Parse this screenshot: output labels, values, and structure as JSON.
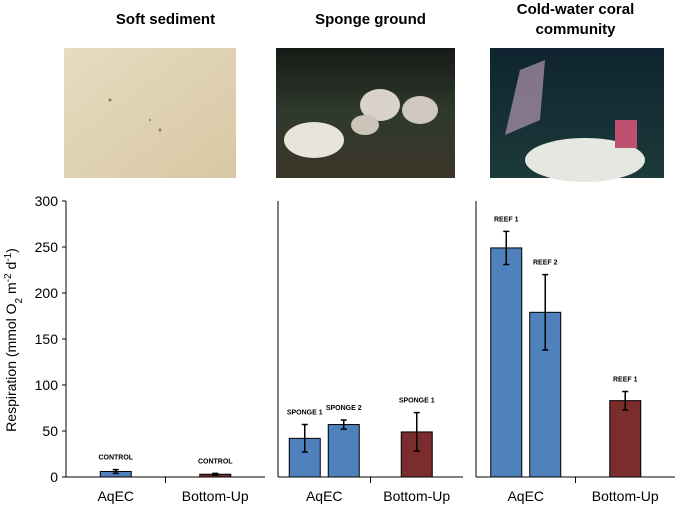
{
  "chart_data": {
    "type": "bar",
    "y_label_parts": [
      "Respiration (mmol O",
      "2",
      " m",
      "-2",
      " d",
      "-1",
      ")"
    ],
    "ylim": [
      0,
      300
    ],
    "yticks": [
      0,
      50,
      100,
      150,
      200,
      250,
      300
    ],
    "panels": [
      {
        "title": "Soft sediment",
        "categories": [
          "AqEC",
          "Bottom-Up"
        ],
        "bars": [
          {
            "category": 0,
            "label": "CONTROL",
            "value": 6,
            "error": 2,
            "color": "#4f81bd"
          },
          {
            "category": 1,
            "label": "CONTROL",
            "value": 3,
            "error": 1,
            "color": "#7b2c2c"
          }
        ]
      },
      {
        "title": "Sponge ground",
        "categories": [
          "AqEC",
          "Bottom-Up"
        ],
        "bars": [
          {
            "category": 0,
            "label": "SPONGE 1",
            "value": 42,
            "error": 15,
            "color": "#4f81bd"
          },
          {
            "category": 0,
            "label": "SPONGE 2",
            "value": 57,
            "error": 5,
            "color": "#4f81bd"
          },
          {
            "category": 1,
            "label": "SPONGE 1",
            "value": 49,
            "error": 21,
            "color": "#7b2c2c"
          }
        ]
      },
      {
        "title": "Cold-water coral community",
        "categories": [
          "AqEC",
          "Bottom-Up"
        ],
        "bars": [
          {
            "category": 0,
            "label": "REEF 1",
            "value": 249,
            "error": 18,
            "color": "#4f81bd"
          },
          {
            "category": 0,
            "label": "REEF 2",
            "value": 179,
            "error": 41,
            "color": "#4f81bd"
          },
          {
            "category": 1,
            "label": "REEF 1",
            "value": 83,
            "error": 10,
            "color": "#7b2c2c"
          }
        ]
      }
    ]
  }
}
